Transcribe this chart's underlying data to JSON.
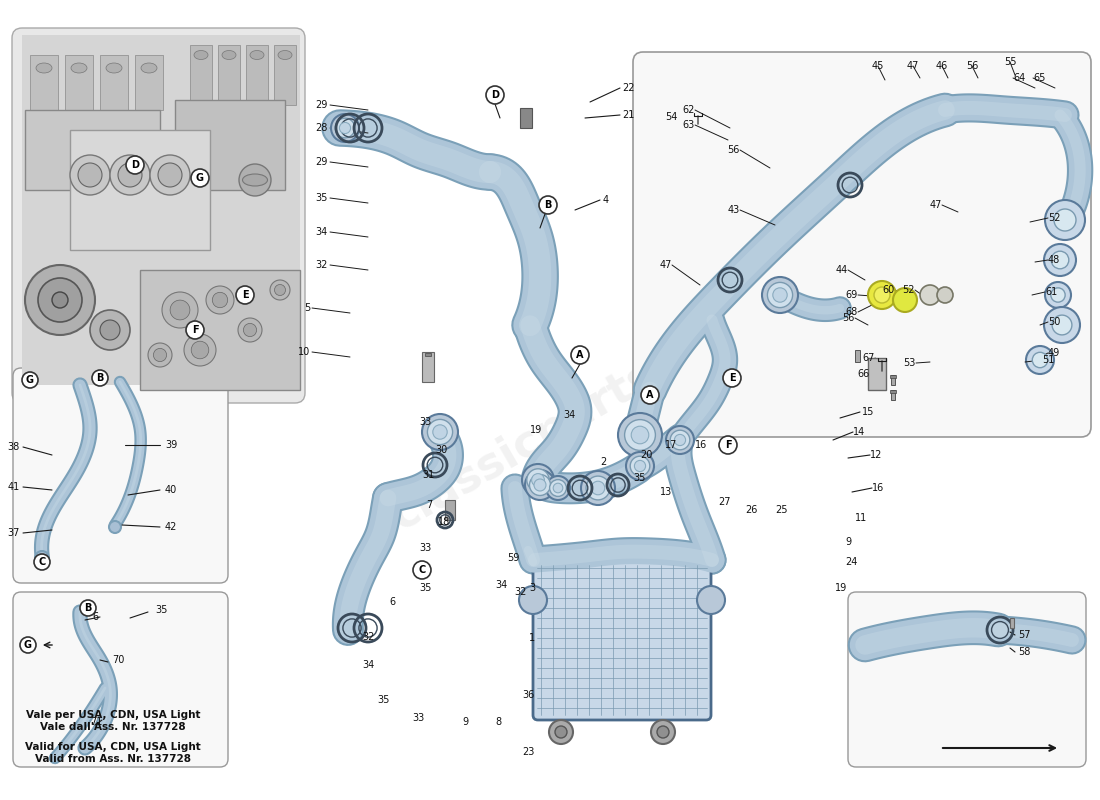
{
  "bg_color": "#ffffff",
  "pipe_color": "#adc5d8",
  "pipe_edge_color": "#6a8faf",
  "pipe_dark": "#7ba0b8",
  "pipe_light": "#ccdde8",
  "highlight_yellow": "#e8e870",
  "line_color": "#1a1a1a",
  "text_color": "#111111",
  "box_edge": "#888888",
  "box_fill": "#f9f9f9",
  "engine_fill": "#d0d0d0",
  "label_fs": 7.5,
  "small_fs": 7.0,
  "footer_it": "Vale per USA, CDN, USA Light\nVale dall'Ass. Nr. 137728",
  "footer_en": "Valid for USA, CDN, USA Light\nValid from Ass. Nr. 137728",
  "watermark": "classicparts35"
}
